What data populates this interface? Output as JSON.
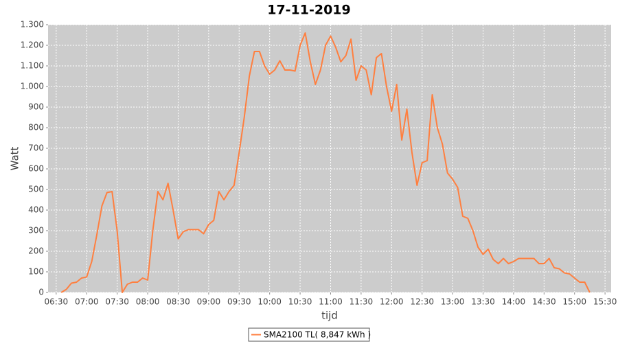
{
  "chart_data": {
    "type": "line",
    "title": "17-11-2019",
    "x_label": "tijd",
    "y_label": "Watt",
    "x": [
      "06:35",
      "06:40",
      "06:45",
      "06:50",
      "06:55",
      "07:00",
      "07:05",
      "07:10",
      "07:15",
      "07:20",
      "07:25",
      "07:30",
      "07:35",
      "07:40",
      "07:45",
      "07:50",
      "07:55",
      "08:00",
      "08:05",
      "08:10",
      "08:15",
      "08:20",
      "08:25",
      "08:30",
      "08:35",
      "08:40",
      "08:45",
      "08:50",
      "08:55",
      "09:00",
      "09:05",
      "09:10",
      "09:15",
      "09:20",
      "09:25",
      "09:30",
      "09:35",
      "09:40",
      "09:45",
      "09:50",
      "09:55",
      "10:00",
      "10:05",
      "10:10",
      "10:15",
      "10:20",
      "10:25",
      "10:30",
      "10:35",
      "10:40",
      "10:45",
      "10:50",
      "10:55",
      "11:00",
      "11:05",
      "11:10",
      "11:15",
      "11:20",
      "11:25",
      "11:30",
      "11:35",
      "11:40",
      "11:45",
      "11:50",
      "11:55",
      "12:00",
      "12:05",
      "12:10",
      "12:15",
      "12:20",
      "12:25",
      "12:30",
      "12:35",
      "12:40",
      "12:45",
      "12:50",
      "12:55",
      "13:00",
      "13:05",
      "13:10",
      "13:15",
      "13:20",
      "13:25",
      "13:30",
      "13:35",
      "13:40",
      "13:45",
      "13:50",
      "13:55",
      "14:00",
      "14:05",
      "14:10",
      "14:15",
      "14:20",
      "14:25",
      "14:30",
      "14:35",
      "14:40",
      "14:45",
      "14:50",
      "14:55",
      "15:00",
      "15:05",
      "15:10",
      "15:15"
    ],
    "series": [
      {
        "name": "SMA2100 TL( 8,847 kWh )",
        "color": "#ff7f3f",
        "values": [
          0,
          15,
          45,
          50,
          70,
          75,
          150,
          280,
          420,
          485,
          490,
          300,
          0,
          40,
          50,
          50,
          70,
          60,
          300,
          490,
          450,
          530,
          400,
          260,
          295,
          305,
          305,
          305,
          285,
          330,
          350,
          490,
          450,
          490,
          520,
          680,
          850,
          1050,
          1170,
          1170,
          1100,
          1060,
          1080,
          1125,
          1080,
          1080,
          1075,
          1200,
          1260,
          1120,
          1010,
          1080,
          1200,
          1245,
          1190,
          1120,
          1150,
          1230,
          1030,
          1100,
          1080,
          960,
          1140,
          1160,
          1000,
          880,
          1010,
          740,
          890,
          680,
          520,
          630,
          640,
          960,
          800,
          720,
          580,
          550,
          510,
          370,
          360,
          300,
          220,
          185,
          210,
          160,
          140,
          165,
          140,
          150,
          165,
          165,
          165,
          165,
          140,
          140,
          165,
          120,
          115,
          95,
          90,
          70,
          50,
          50,
          0
        ]
      }
    ],
    "xlim": [
      "06:22",
      "15:36"
    ],
    "xticks": [
      "06:30",
      "07:00",
      "07:30",
      "08:00",
      "08:30",
      "09:00",
      "09:30",
      "10:00",
      "10:30",
      "11:00",
      "11:30",
      "12:00",
      "12:30",
      "13:00",
      "13:30",
      "14:00",
      "14:30",
      "15:00",
      "15:30"
    ],
    "ylim": [
      0,
      1300
    ],
    "yticks": [
      0,
      100,
      200,
      300,
      400,
      500,
      600,
      700,
      800,
      900,
      {
        "value": 1000,
        "label": "1.000"
      },
      {
        "value": 1100,
        "label": "1.100"
      },
      {
        "value": 1200,
        "label": "1.200"
      },
      {
        "value": 1300,
        "label": "1.300"
      }
    ],
    "grid": true
  }
}
